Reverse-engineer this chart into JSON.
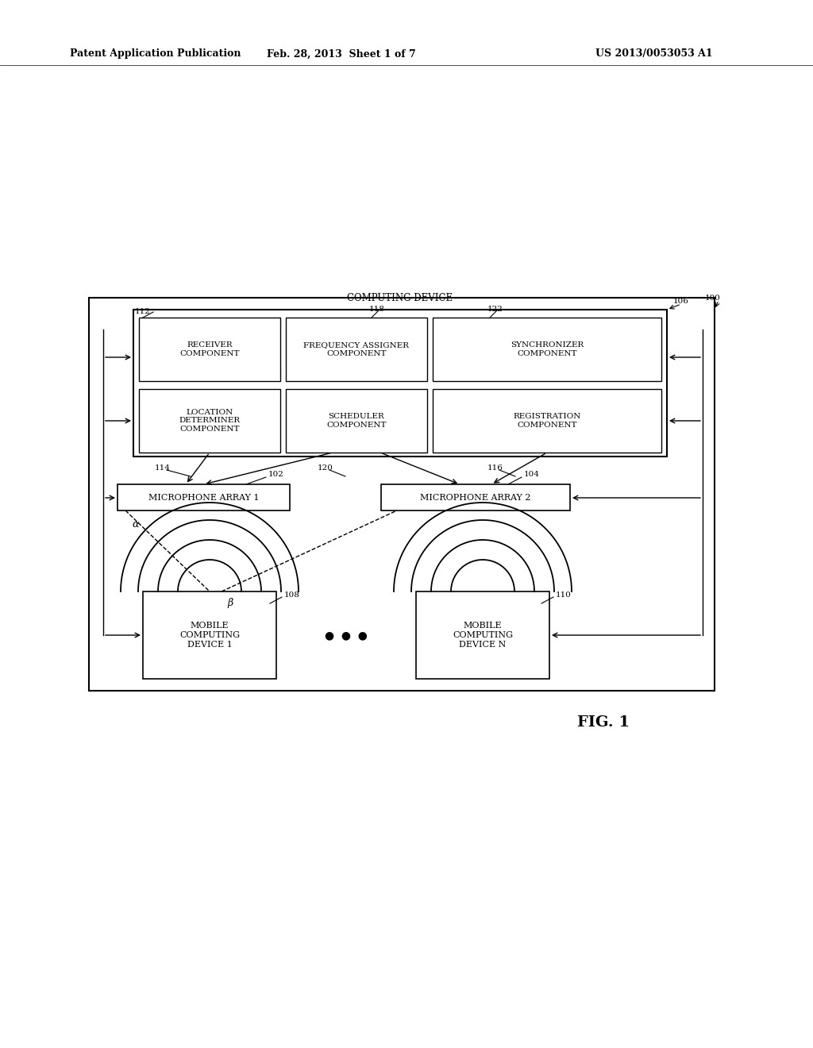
{
  "bg_color": "#ffffff",
  "header_left": "Patent Application Publication",
  "header_mid": "Feb. 28, 2013  Sheet 1 of 7",
  "header_right": "US 2013/0053053 A1",
  "fig_label": "FIG. 1",
  "outer_box_label": "COMPUTING DEVICE",
  "components": [
    {
      "label": "RECEIVER\nCOMPONENT",
      "row": 0,
      "col": 0
    },
    {
      "label": "FREQUENCY ASSIGNER\nCOMPONENT",
      "row": 0,
      "col": 1
    },
    {
      "label": "SYNCHRONIZER\nCOMPONENT",
      "row": 0,
      "col": 2
    },
    {
      "label": "LOCATION\nDETERMINER\nCOMPONENT",
      "row": 1,
      "col": 0
    },
    {
      "label": "SCHEDULER\nCOMPONENT",
      "row": 1,
      "col": 1
    },
    {
      "label": "REGISTRATION\nCOMPONENT",
      "row": 1,
      "col": 2
    }
  ],
  "mic_array1_label": "MICROPHONE ARRAY 1",
  "mic_array2_label": "MICROPHONE ARRAY 2",
  "mobile1_label": "MOBILE\nCOMPUTING\nDEVICE 1",
  "mobile2_label": "MOBILE\nCOMPUTING\nDEVICE N"
}
